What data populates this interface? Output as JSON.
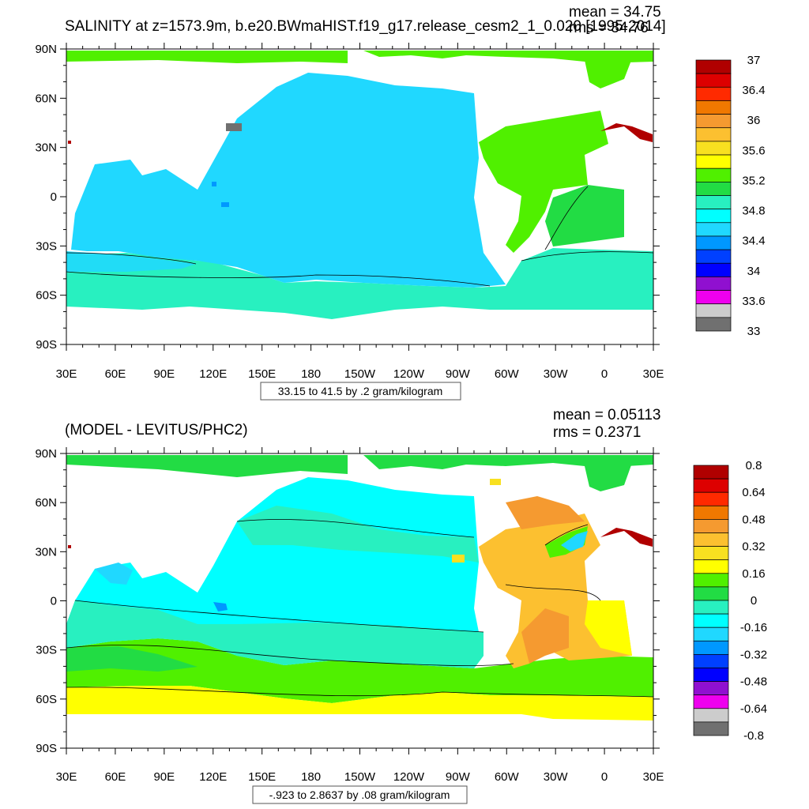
{
  "panels": [
    {
      "title": "SALINITY at z=1573.9m, b.e20.BWmaHIST.f19_g17.release_cesm2_1_0.020 [1995-2014]",
      "mean_text": "mean = 34.75",
      "rms_text": "rms = 34.76",
      "range_text": "33.15 to 41.5 by .2 gram/kilogram",
      "colorbar": {
        "labels": [
          "37",
          "36.4",
          "36",
          "35.6",
          "35.2",
          "34.8",
          "34.4",
          "34",
          "33.6",
          "33"
        ],
        "colors": [
          "#b00000",
          "#dd0000",
          "#ff2a00",
          "#f07800",
          "#f59a30",
          "#fcc030",
          "#f8e020",
          "#ffff00",
          "#50f000",
          "#22dc44",
          "#28f0c0",
          "#00ffff",
          "#20d8ff",
          "#0098ff",
          "#0040ff",
          "#0000ff",
          "#9010d0",
          "#ee00ee",
          "#cccccc",
          "#707070"
        ]
      }
    },
    {
      "title": "(MODEL - LEVITUS/PHC2)",
      "mean_text": "mean = 0.05113",
      "rms_text": "rms = 0.2371",
      "range_text": "-.923 to 2.8637 by .08 gram/kilogram",
      "colorbar": {
        "labels": [
          "0.8",
          "0.64",
          "0.48",
          "0.32",
          "0.16",
          "0",
          "-0.16",
          "-0.32",
          "-0.48",
          "-0.64",
          "-0.8"
        ],
        "colors": [
          "#b00000",
          "#dd0000",
          "#ff2a00",
          "#f07800",
          "#f59a30",
          "#fcc030",
          "#f8e020",
          "#ffff00",
          "#50f000",
          "#22dc44",
          "#28f0c0",
          "#00ffff",
          "#20d8ff",
          "#0098ff",
          "#0040ff",
          "#0000ff",
          "#9010d0",
          "#ee00ee",
          "#cccccc",
          "#707070"
        ]
      }
    }
  ],
  "chart_data": [
    {
      "type": "heatmap",
      "title": "SALINITY at z=1573.9m, b.e20.BWmaHIST.f19_g17.release_cesm2_1_0.020 [1995-2014]",
      "x_ticks": [
        "30E",
        "60E",
        "90E",
        "120E",
        "150E",
        "180",
        "150W",
        "120W",
        "90W",
        "60W",
        "30W",
        "0",
        "30E"
      ],
      "y_ticks": [
        "90N",
        "60N",
        "30N",
        "0",
        "30S",
        "60S",
        "90S"
      ],
      "x_range": [
        30,
        390
      ],
      "y_range": [
        -90,
        90
      ],
      "units": "gram/kilogram",
      "regions": [
        {
          "lon": [
            20,
            85
          ],
          "lat": [
            -35,
            20
          ],
          "value": 34.75
        },
        {
          "lon": [
            110,
            285
          ],
          "lat": [
            -40,
            60
          ],
          "value": 34.65
        },
        {
          "lon": [
            20,
            390
          ],
          "lat": [
            -75,
            -40
          ],
          "value": 34.72
        },
        {
          "lon": [
            295,
            380
          ],
          "lat": [
            -35,
            60
          ],
          "value": 34.95
        },
        {
          "lon": [
            20,
            390
          ],
          "lat": [
            80,
            90
          ],
          "value": 34.92
        }
      ]
    },
    {
      "type": "heatmap",
      "title": "(MODEL - LEVITUS/PHC2)",
      "x_ticks": [
        "30E",
        "60E",
        "90E",
        "120E",
        "150E",
        "180",
        "150W",
        "120W",
        "90W",
        "60W",
        "30W",
        "0",
        "30E"
      ],
      "y_ticks": [
        "90N",
        "60N",
        "30N",
        "0",
        "30S",
        "60S",
        "90S"
      ],
      "x_range": [
        30,
        390
      ],
      "y_range": [
        -90,
        90
      ],
      "units": "gram/kilogram",
      "regions": [
        {
          "lon": [
            110,
            285
          ],
          "lat": [
            -15,
            60
          ],
          "value": -0.1
        },
        {
          "lon": [
            20,
            390
          ],
          "lat": [
            -75,
            -55
          ],
          "value": 0.15
        },
        {
          "lon": [
            295,
            380
          ],
          "lat": [
            0,
            60
          ],
          "value": 0.28
        },
        {
          "lon": [
            340,
            355
          ],
          "lat": [
            30,
            42
          ],
          "value": -0.3
        },
        {
          "lon": [
            20,
            390
          ],
          "lat": [
            80,
            90
          ],
          "value": 0.02
        }
      ]
    }
  ]
}
